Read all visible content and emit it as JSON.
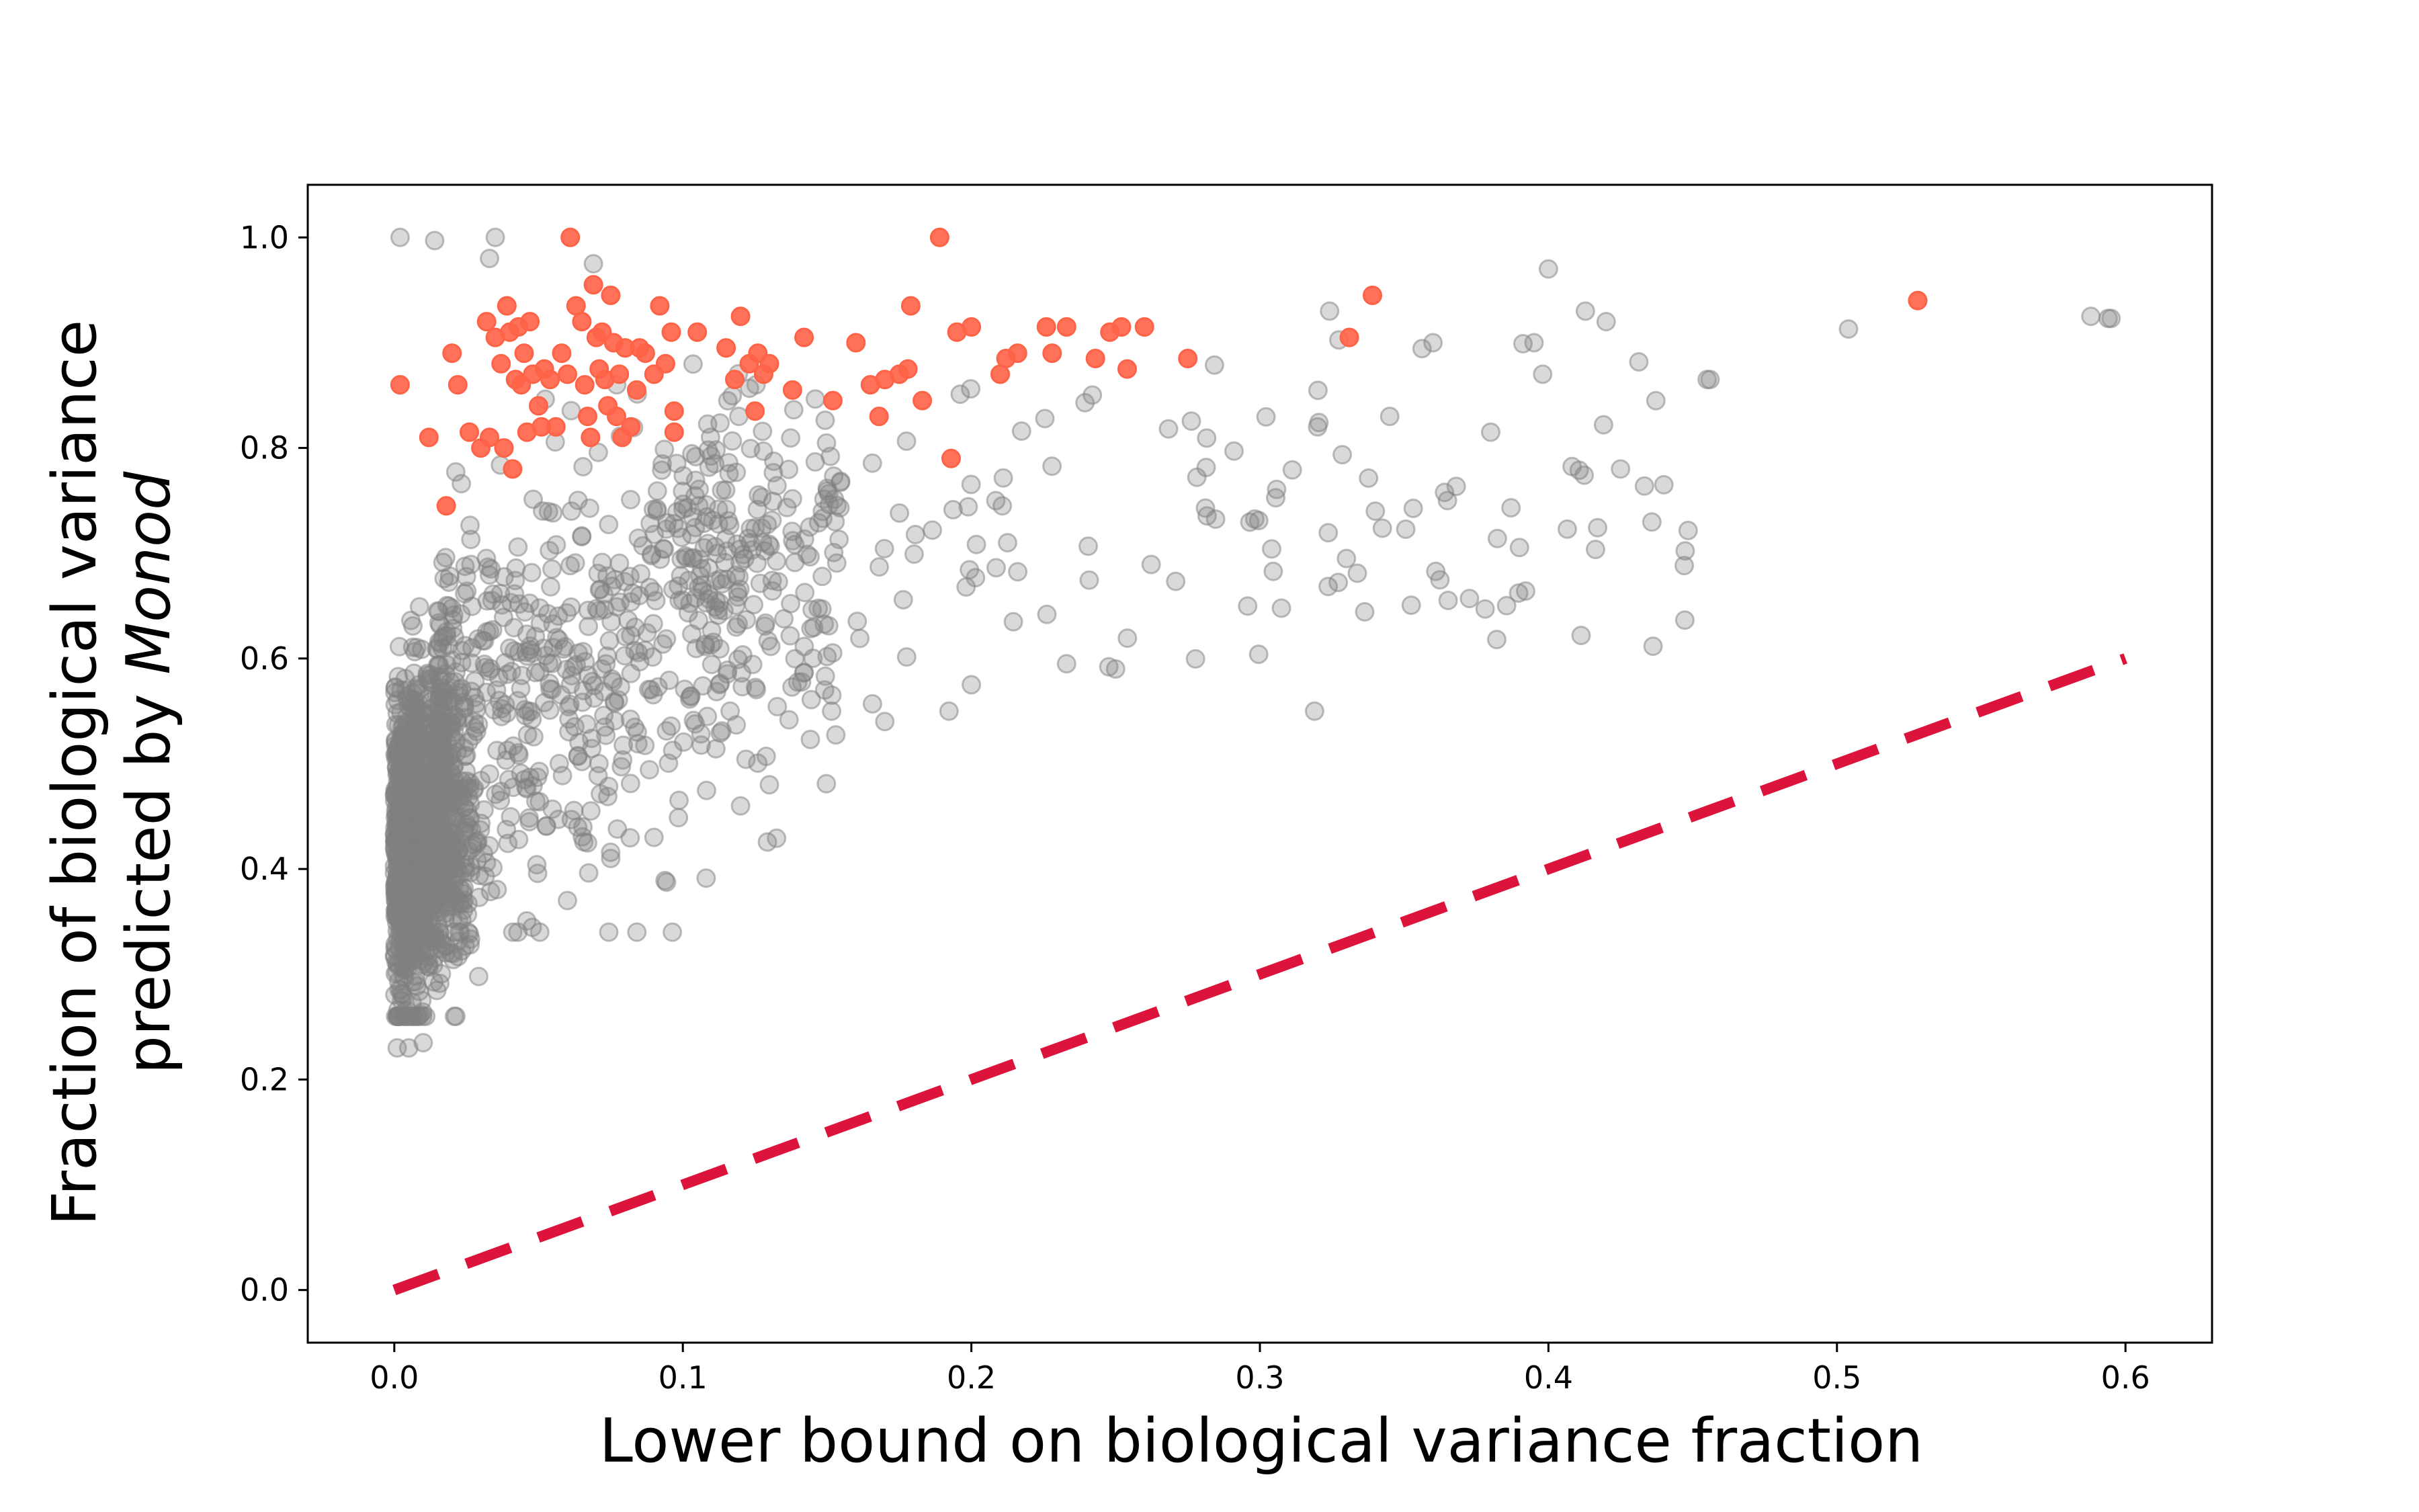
{
  "chart_data": {
    "type": "scatter",
    "xlabel": "Lower bound on biological variance fraction",
    "ylabel_line1": "Fraction of biological variance",
    "ylabel_line2_prefix": "predicted by ",
    "ylabel_line2_italic": "Monod",
    "xlim": [
      -0.03,
      0.63
    ],
    "ylim": [
      -0.05,
      1.05
    ],
    "xticks": [
      0.0,
      0.1,
      0.2,
      0.3,
      0.4,
      0.5,
      0.6
    ],
    "xtick_labels": [
      "0.0",
      "0.1",
      "0.2",
      "0.3",
      "0.4",
      "0.5",
      "0.6"
    ],
    "yticks": [
      0.0,
      0.2,
      0.4,
      0.6,
      0.8,
      1.0
    ],
    "ytick_labels": [
      "0.0",
      "0.2",
      "0.4",
      "0.6",
      "0.8",
      "1.0"
    ],
    "grid": false,
    "colors": {
      "background_points": "#808080",
      "highlight_points": "#ff6347",
      "reference_line": "#dc143c"
    },
    "reference_line": {
      "x": [
        0.0,
        0.6
      ],
      "y": [
        0.0,
        0.6
      ],
      "style": "dashed"
    },
    "highlight_points": [
      [
        0.002,
        0.86
      ],
      [
        0.012,
        0.81
      ],
      [
        0.018,
        0.745
      ],
      [
        0.02,
        0.89
      ],
      [
        0.022,
        0.86
      ],
      [
        0.026,
        0.815
      ],
      [
        0.03,
        0.8
      ],
      [
        0.032,
        0.92
      ],
      [
        0.033,
        0.81
      ],
      [
        0.035,
        0.905
      ],
      [
        0.037,
        0.88
      ],
      [
        0.038,
        0.8
      ],
      [
        0.039,
        0.935
      ],
      [
        0.04,
        0.91
      ],
      [
        0.041,
        0.78
      ],
      [
        0.042,
        0.865
      ],
      [
        0.043,
        0.915
      ],
      [
        0.044,
        0.86
      ],
      [
        0.045,
        0.89
      ],
      [
        0.046,
        0.815
      ],
      [
        0.047,
        0.92
      ],
      [
        0.048,
        0.87
      ],
      [
        0.05,
        0.84
      ],
      [
        0.051,
        0.82
      ],
      [
        0.052,
        0.875
      ],
      [
        0.054,
        0.865
      ],
      [
        0.056,
        0.82
      ],
      [
        0.058,
        0.89
      ],
      [
        0.06,
        0.87
      ],
      [
        0.061,
        1.0
      ],
      [
        0.063,
        0.935
      ],
      [
        0.065,
        0.92
      ],
      [
        0.066,
        0.86
      ],
      [
        0.067,
        0.83
      ],
      [
        0.068,
        0.81
      ],
      [
        0.069,
        0.955
      ],
      [
        0.07,
        0.905
      ],
      [
        0.071,
        0.875
      ],
      [
        0.072,
        0.91
      ],
      [
        0.073,
        0.865
      ],
      [
        0.074,
        0.84
      ],
      [
        0.075,
        0.945
      ],
      [
        0.076,
        0.9
      ],
      [
        0.077,
        0.83
      ],
      [
        0.078,
        0.87
      ],
      [
        0.079,
        0.81
      ],
      [
        0.08,
        0.895
      ],
      [
        0.082,
        0.82
      ],
      [
        0.084,
        0.855
      ],
      [
        0.085,
        0.895
      ],
      [
        0.087,
        0.89
      ],
      [
        0.09,
        0.87
      ],
      [
        0.092,
        0.935
      ],
      [
        0.094,
        0.88
      ],
      [
        0.096,
        0.91
      ],
      [
        0.097,
        0.835
      ],
      [
        0.097,
        0.815
      ],
      [
        0.105,
        0.91
      ],
      [
        0.115,
        0.895
      ],
      [
        0.118,
        0.865
      ],
      [
        0.12,
        0.925
      ],
      [
        0.123,
        0.88
      ],
      [
        0.125,
        0.835
      ],
      [
        0.126,
        0.89
      ],
      [
        0.128,
        0.87
      ],
      [
        0.13,
        0.88
      ],
      [
        0.138,
        0.855
      ],
      [
        0.142,
        0.905
      ],
      [
        0.152,
        0.845
      ],
      [
        0.16,
        0.9
      ],
      [
        0.165,
        0.86
      ],
      [
        0.168,
        0.83
      ],
      [
        0.17,
        0.865
      ],
      [
        0.175,
        0.87
      ],
      [
        0.178,
        0.875
      ],
      [
        0.179,
        0.935
      ],
      [
        0.183,
        0.845
      ],
      [
        0.189,
        1.0
      ],
      [
        0.193,
        0.79
      ],
      [
        0.195,
        0.91
      ],
      [
        0.2,
        0.915
      ],
      [
        0.21,
        0.87
      ],
      [
        0.212,
        0.885
      ],
      [
        0.216,
        0.89
      ],
      [
        0.226,
        0.915
      ],
      [
        0.228,
        0.89
      ],
      [
        0.233,
        0.915
      ],
      [
        0.243,
        0.885
      ],
      [
        0.248,
        0.91
      ],
      [
        0.252,
        0.915
      ],
      [
        0.254,
        0.875
      ],
      [
        0.26,
        0.915
      ],
      [
        0.275,
        0.885
      ],
      [
        0.331,
        0.905
      ],
      [
        0.339,
        0.945
      ],
      [
        0.528,
        0.94
      ]
    ]
  }
}
